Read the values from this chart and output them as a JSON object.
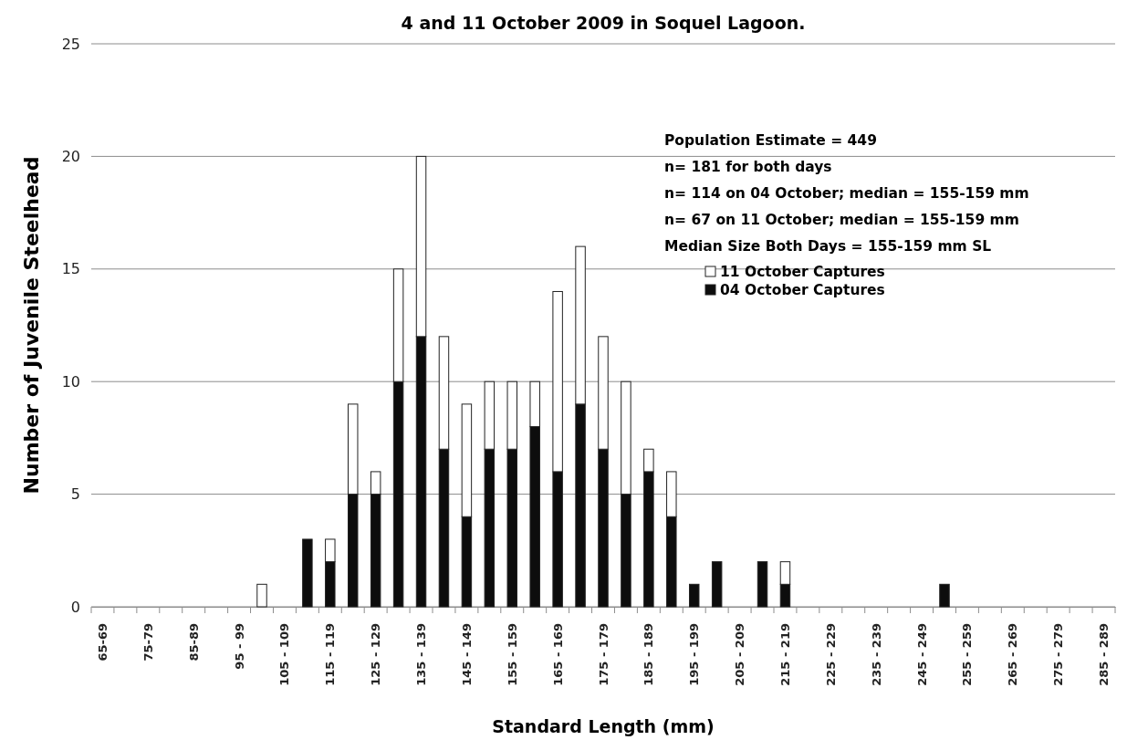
{
  "chart_data": {
    "type": "bar",
    "title": "4 and 11 October 2009 in Soquel Lagoon.",
    "xlabel": "Standard Length (mm)",
    "ylabel": "Number of Juvenile Steelhead",
    "categories": [
      "65-69",
      null,
      "75-79",
      null,
      "85-89",
      null,
      "95 - 99",
      null,
      "105 - 109",
      null,
      "115 - 119",
      null,
      "125 - 129",
      null,
      "135 - 139",
      null,
      "145 - 149",
      null,
      "155 - 159",
      null,
      "165 - 169",
      null,
      "175 - 179",
      null,
      "185 - 189",
      null,
      "195 - 199",
      null,
      "205 - 209",
      null,
      "215 - 219",
      null,
      "225 - 229",
      null,
      "235 - 239",
      null,
      "245 - 249",
      null,
      "255 - 259",
      null,
      "265 - 269",
      null,
      "275 - 279",
      null,
      "285 - 289"
    ],
    "stacked": true,
    "series": [
      {
        "name": "04 October Captures",
        "color": "#0d0d0d",
        "values": [
          0,
          0,
          0,
          0,
          0,
          0,
          0,
          0,
          0,
          3,
          2,
          5,
          5,
          10,
          12,
          7,
          4,
          7,
          7,
          8,
          6,
          9,
          7,
          5,
          6,
          4,
          1,
          2,
          0,
          2,
          1,
          0,
          0,
          0,
          0,
          0,
          0,
          1,
          0,
          0,
          0,
          0,
          0,
          0,
          0
        ]
      },
      {
        "name": "11 October Captures",
        "color": "#ffffff",
        "values": [
          0,
          0,
          0,
          0,
          0,
          0,
          0,
          1,
          0,
          0,
          1,
          4,
          1,
          5,
          8,
          5,
          5,
          3,
          3,
          2,
          8,
          7,
          5,
          5,
          1,
          2,
          0,
          0,
          0,
          0,
          1,
          0,
          0,
          0,
          0,
          0,
          0,
          0,
          0,
          0,
          0,
          0,
          0,
          0,
          0
        ]
      }
    ],
    "ylim": [
      0,
      25
    ],
    "yticks": [
      0,
      5,
      10,
      15,
      20,
      25
    ],
    "grid": "y",
    "legend": "top right",
    "annotations": [
      "Population Estimate = 449",
      "n= 181 for both days",
      "n= 114 on 04 October; median = 155-159 mm",
      "n= 67 on 11 October; median = 155-159 mm",
      "Median Size Both Days = 155-159 mm SL"
    ]
  }
}
